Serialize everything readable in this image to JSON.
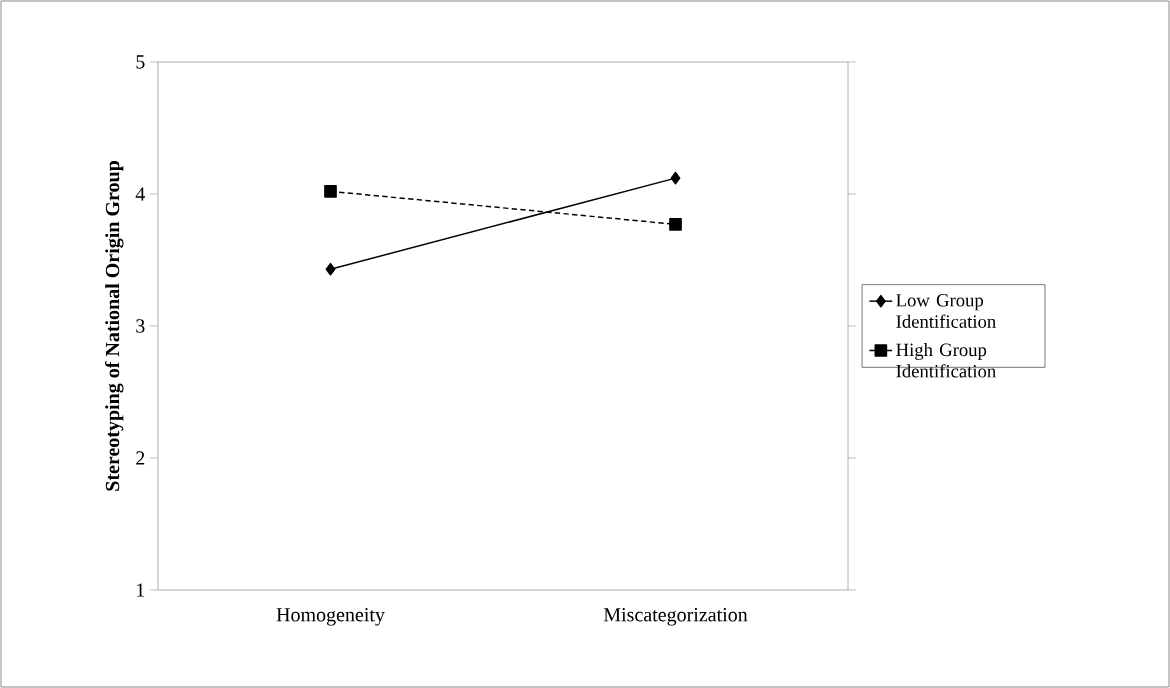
{
  "chart_data": {
    "type": "line",
    "ylabel": "Stereotyping of National Origin Group",
    "categories": [
      "Homogeneity",
      "Miscategorization"
    ],
    "series": [
      {
        "name": "Low Group Identification",
        "color": "#000000",
        "values": [
          3.43,
          4.12
        ],
        "marker": "diamond",
        "line_style": "solid"
      },
      {
        "name": "High Group Identification",
        "color": "#000000",
        "values": [
          4.02,
          3.77
        ],
        "marker": "square",
        "line_style": "dashed"
      }
    ],
    "ylim": [
      1,
      5
    ],
    "yticks": [
      1,
      2,
      3,
      4,
      5
    ],
    "grid": false,
    "legend": "right"
  }
}
